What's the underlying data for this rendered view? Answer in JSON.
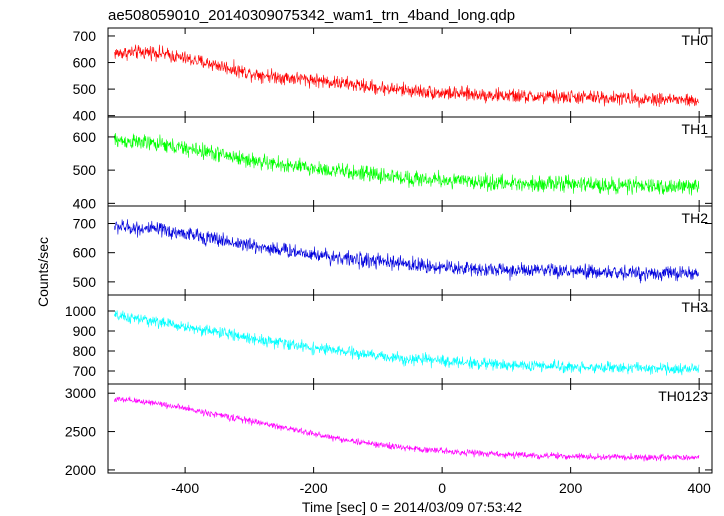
{
  "chart_data": {
    "type": "line",
    "title": "ae508059010_20140309075342_wam1_trn_4band_long.qdp",
    "xlabel": "Time [sec] 0 = 2014/03/09 07:53:42",
    "ylabel": "Counts/sec",
    "xlim": [
      -520,
      420
    ],
    "x_ticks": [
      -400,
      -200,
      0,
      200,
      400
    ],
    "x_range": [
      -510,
      400
    ],
    "grid": false,
    "panels": [
      {
        "name": "TH0",
        "color": "#ff0000",
        "ylim": [
          395,
          730
        ],
        "y_ticks": [
          400,
          500,
          600,
          700
        ],
        "x": [
          -510,
          -450,
          -400,
          -350,
          -300,
          -250,
          -200,
          -150,
          -100,
          -50,
          0,
          50,
          100,
          150,
          200,
          250,
          300,
          350,
          400
        ],
        "y": [
          635,
          640,
          615,
          590,
          560,
          545,
          535,
          520,
          505,
          495,
          485,
          480,
          475,
          470,
          470,
          468,
          465,
          462,
          455
        ],
        "noise": 28
      },
      {
        "name": "TH1",
        "color": "#00ff00",
        "ylim": [
          392,
          660
        ],
        "y_ticks": [
          400,
          500,
          600
        ],
        "x": [
          -510,
          -450,
          -400,
          -350,
          -300,
          -250,
          -200,
          -150,
          -100,
          -50,
          0,
          50,
          100,
          150,
          200,
          250,
          300,
          350,
          400
        ],
        "y": [
          590,
          580,
          565,
          550,
          530,
          515,
          505,
          495,
          485,
          475,
          470,
          465,
          460,
          460,
          458,
          455,
          452,
          450,
          450
        ],
        "noise": 25
      },
      {
        "name": "TH2",
        "color": "#0000dd",
        "ylim": [
          455,
          760
        ],
        "y_ticks": [
          500,
          600,
          700
        ],
        "x": [
          -510,
          -450,
          -400,
          -350,
          -300,
          -250,
          -200,
          -150,
          -100,
          -50,
          0,
          50,
          100,
          150,
          200,
          250,
          300,
          350,
          400
        ],
        "y": [
          690,
          680,
          665,
          645,
          625,
          610,
          595,
          580,
          570,
          560,
          550,
          545,
          540,
          537,
          535,
          532,
          530,
          530,
          528
        ],
        "noise": 27
      },
      {
        "name": "TH3",
        "color": "#00ffff",
        "ylim": [
          635,
          1080
        ],
        "y_ticks": [
          700,
          800,
          900,
          1000
        ],
        "x": [
          -510,
          -450,
          -400,
          -350,
          -300,
          -250,
          -200,
          -150,
          -100,
          -50,
          0,
          50,
          100,
          150,
          200,
          250,
          300,
          350,
          400
        ],
        "y": [
          975,
          950,
          920,
          895,
          865,
          840,
          815,
          795,
          775,
          760,
          750,
          740,
          730,
          725,
          720,
          718,
          715,
          712,
          710
        ],
        "noise": 30
      },
      {
        "name": "TH0123",
        "color": "#ff00ff",
        "ylim": [
          1960,
          3120
        ],
        "y_ticks": [
          2000,
          2500,
          3000
        ],
        "x": [
          -510,
          -450,
          -400,
          -350,
          -300,
          -250,
          -200,
          -150,
          -100,
          -50,
          0,
          50,
          100,
          150,
          200,
          250,
          300,
          350,
          400
        ],
        "y": [
          2920,
          2880,
          2800,
          2720,
          2640,
          2560,
          2470,
          2390,
          2330,
          2280,
          2250,
          2220,
          2200,
          2185,
          2175,
          2170,
          2165,
          2160,
          2160
        ],
        "noise": 45
      }
    ]
  }
}
